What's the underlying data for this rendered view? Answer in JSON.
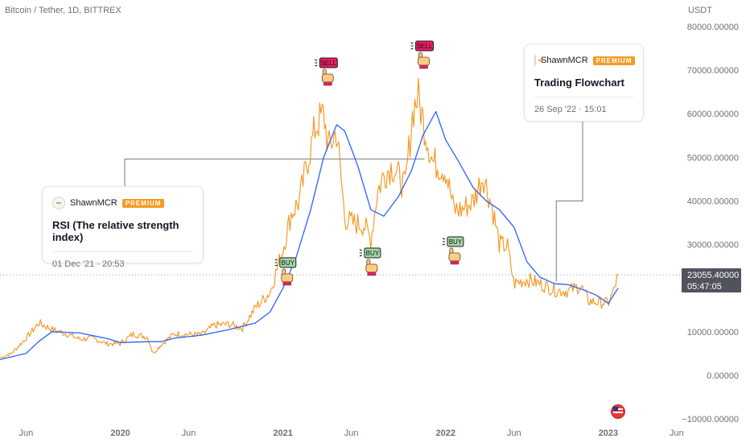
{
  "symbol_label": "Bitcoin / Tether, 1D, BITTREX",
  "currency_label": "USDT",
  "callouts": [
    {
      "author": "ShawnMCR",
      "badge": "PREMIUM",
      "title": "RSI (The relative strength index)",
      "date": "01 Dec '21 · 20:53"
    },
    {
      "author": "ShawnMCR",
      "badge": "PREMIUM",
      "title": "Trading Flowchart",
      "date": "26 Sep '22 · 15:01"
    }
  ],
  "last_price": {
    "value": "23055.40000",
    "countdown": "05:47:05",
    "color": "#50535e"
  },
  "signals": [
    {
      "label": "SELL",
      "type": "sell",
      "date": "2021.27"
    },
    {
      "label": "SELL",
      "type": "sell",
      "date": "2021.86"
    },
    {
      "label": "BUY",
      "type": "buy",
      "date": "2021.02"
    },
    {
      "label": "BUY",
      "type": "buy",
      "date": "2021.54"
    },
    {
      "label": "BUY",
      "type": "buy",
      "date": "2022.05"
    }
  ],
  "colors": {
    "price_line": "#f7931a",
    "moving_average": "#2962ff",
    "buy": "#a5d6a7",
    "sell": "#e91e63",
    "axis_text": "#6b7079"
  },
  "icons": {
    "signal": "pointing-hand-icon",
    "flag": "us-flag-icon"
  },
  "chart_data": {
    "type": "line",
    "title": "Bitcoin / Tether, 1D, BITTREX",
    "ylabel": "USDT",
    "ylim": [
      -10000,
      80000
    ],
    "x_range": [
      2019.26,
      2023.5
    ],
    "y_ticks": [
      "80000.00000",
      "70000.00000",
      "60000.00000",
      "50000.00000",
      "40000.00000",
      "30000.00000",
      "20000.00000",
      "10000.00000",
      "0.00000",
      "−10000.00000"
    ],
    "y_tick_values": [
      80000,
      70000,
      60000,
      50000,
      40000,
      30000,
      20000,
      10000,
      0,
      -10000
    ],
    "x_ticks": [
      {
        "label": "Jun",
        "x": 2019.42,
        "bold": false
      },
      {
        "label": "2020",
        "x": 2020.0,
        "bold": true
      },
      {
        "label": "Jun",
        "x": 2020.42,
        "bold": false
      },
      {
        "label": "2021",
        "x": 2021.0,
        "bold": true
      },
      {
        "label": "Jun",
        "x": 2021.42,
        "bold": false
      },
      {
        "label": "2022",
        "x": 2022.0,
        "bold": true
      },
      {
        "label": "Jun",
        "x": 2022.42,
        "bold": false
      },
      {
        "label": "2023",
        "x": 2023.0,
        "bold": true
      },
      {
        "label": "Jun",
        "x": 2023.42,
        "bold": false
      }
    ],
    "grid": false,
    "series": [
      {
        "name": "",
        "style": "price",
        "x": [
          2019.26,
          2019.33,
          2019.42,
          2019.5,
          2019.58,
          2019.67,
          2019.75,
          2019.83,
          2019.92,
          2020.0,
          2020.08,
          2020.17,
          2020.2,
          2020.25,
          2020.33,
          2020.42,
          2020.5,
          2020.58,
          2020.67,
          2020.75,
          2020.83,
          2020.92,
          2021.0,
          2021.05,
          2021.1,
          2021.15,
          2021.2,
          2021.25,
          2021.28,
          2021.33,
          2021.38,
          2021.42,
          2021.5,
          2021.54,
          2021.58,
          2021.62,
          2021.67,
          2021.72,
          2021.75,
          2021.8,
          2021.83,
          2021.87,
          2021.92,
          2022.0,
          2022.05,
          2022.1,
          2022.17,
          2022.23,
          2022.29,
          2022.33,
          2022.38,
          2022.42,
          2022.5,
          2022.58,
          2022.67,
          2022.75,
          2022.83,
          2022.88,
          2022.92,
          2023.0,
          2023.03,
          2023.06
        ],
        "y": [
          4000,
          5000,
          8500,
          12000,
          10500,
          9500,
          8300,
          8500,
          7200,
          7300,
          9500,
          8700,
          5000,
          7000,
          9500,
          9400,
          9300,
          11500,
          11700,
          10800,
          15500,
          19000,
          29000,
          37000,
          40000,
          49000,
          57000,
          60000,
          52000,
          56000,
          36000,
          35000,
          34500,
          31000,
          42000,
          46000,
          48000,
          45000,
          43000,
          61000,
          64000,
          57000,
          49000,
          47000,
          38000,
          38000,
          40000,
          46000,
          38000,
          30000,
          29500,
          21000,
          22000,
          21000,
          19500,
          19300,
          20500,
          17000,
          16800,
          16600,
          19000,
          23055
        ]
      },
      {
        "name": "",
        "style": "ma",
        "x": [
          2019.26,
          2019.42,
          2019.5,
          2019.58,
          2019.75,
          2019.92,
          2020.0,
          2020.17,
          2020.25,
          2020.33,
          2020.5,
          2020.67,
          2020.83,
          2020.92,
          2021.0,
          2021.08,
          2021.17,
          2021.25,
          2021.33,
          2021.38,
          2021.46,
          2021.54,
          2021.62,
          2021.71,
          2021.79,
          2021.86,
          2021.94,
          2022.0,
          2022.08,
          2022.17,
          2022.25,
          2022.33,
          2022.42,
          2022.5,
          2022.58,
          2022.67,
          2022.75,
          2022.83,
          2022.92,
          2023.0,
          2023.06
        ],
        "y": [
          3600,
          5000,
          7800,
          10000,
          9700,
          8400,
          7500,
          7700,
          7700,
          8500,
          9200,
          10500,
          12000,
          14500,
          20000,
          27000,
          38000,
          50000,
          57500,
          56000,
          48000,
          38000,
          36500,
          41000,
          47000,
          55000,
          60500,
          54000,
          49000,
          43000,
          40000,
          38000,
          34000,
          26000,
          22500,
          21000,
          20800,
          19800,
          18500,
          16500,
          20000
        ]
      }
    ]
  }
}
